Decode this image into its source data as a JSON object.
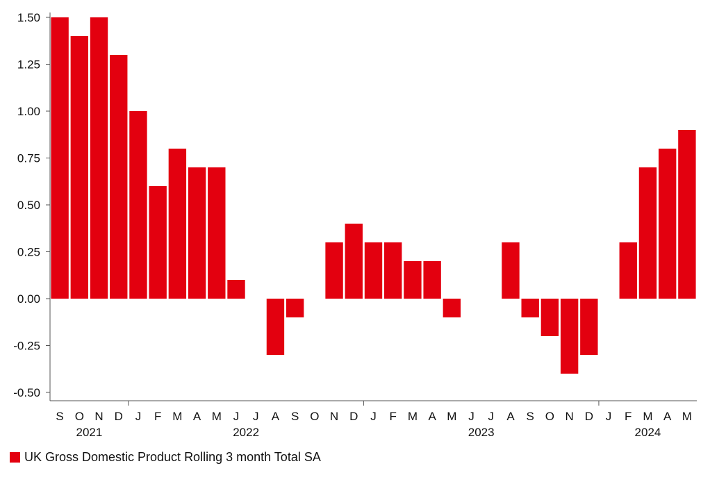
{
  "chart_data": {
    "type": "bar",
    "title": "",
    "xlabel": "",
    "ylabel": "",
    "ylim": [
      -0.55,
      1.55
    ],
    "yticks": [
      "1.50",
      "1.25",
      "1.00",
      "0.75",
      "0.50",
      "0.25",
      "0.00",
      "-0.25",
      "-0.50"
    ],
    "ytick_values": [
      1.5,
      1.25,
      1.0,
      0.75,
      0.5,
      0.25,
      0.0,
      -0.25,
      -0.5
    ],
    "categories": [
      "S",
      "O",
      "N",
      "D",
      "J",
      "F",
      "M",
      "A",
      "M",
      "J",
      "J",
      "A",
      "S",
      "O",
      "N",
      "D",
      "J",
      "F",
      "M",
      "A",
      "M",
      "J",
      "J",
      "A",
      "S",
      "O",
      "N",
      "D",
      "J",
      "F",
      "M",
      "A",
      "M"
    ],
    "year_labels": [
      {
        "label": "2021",
        "at_index": 1.5
      },
      {
        "label": "2022",
        "at_index": 9.5
      },
      {
        "label": "2023",
        "at_index": 21.5
      },
      {
        "label": "2024",
        "at_index": 30.0
      }
    ],
    "year_dividers": [
      3.5,
      15.5,
      27.5
    ],
    "series": [
      {
        "name": "UK Gross Domestic Product Rolling 3 month Total SA",
        "color": "#e3000f",
        "values": [
          1.5,
          1.4,
          1.5,
          1.3,
          1.0,
          0.6,
          0.8,
          0.7,
          0.7,
          0.1,
          0.0,
          -0.3,
          -0.1,
          0.0,
          0.3,
          0.4,
          0.3,
          0.3,
          0.2,
          0.2,
          -0.1,
          0.0,
          0.0,
          0.3,
          -0.1,
          -0.2,
          -0.4,
          -0.3,
          0.0,
          0.3,
          0.7,
          0.8,
          0.9
        ]
      }
    ],
    "grid": false,
    "legend_position": "bottom-left"
  },
  "legend": {
    "label": "UK Gross Domestic Product Rolling 3 month Total SA",
    "color": "#e3000f"
  }
}
